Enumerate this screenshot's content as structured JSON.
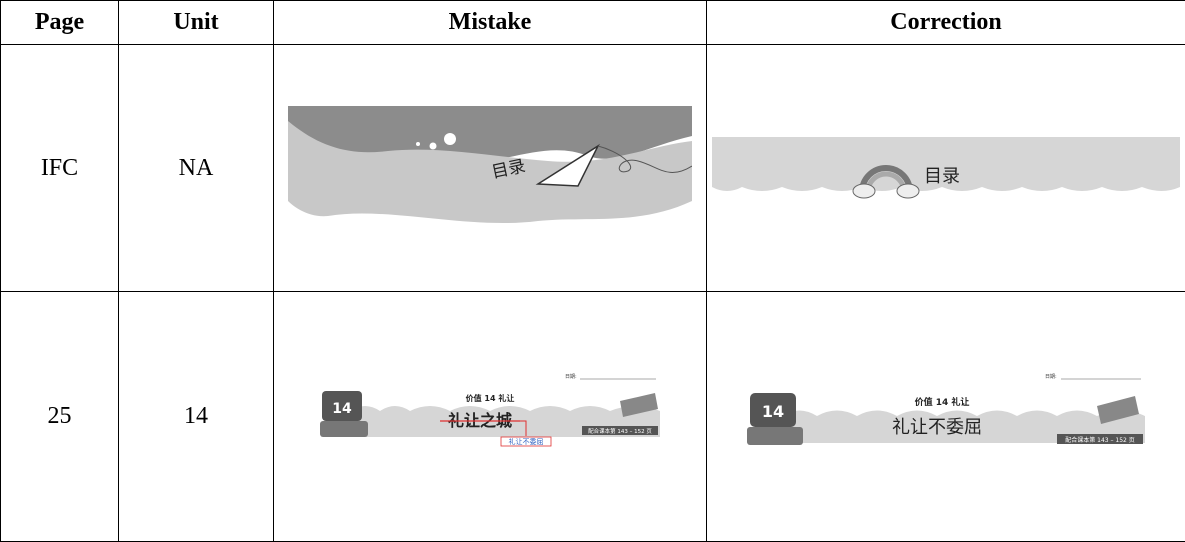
{
  "table": {
    "header": [
      "Page",
      "Unit",
      "Mistake",
      "Correction"
    ],
    "rows": [
      {
        "page": "IFC",
        "unit": "NA",
        "mistake": {
          "heading": "目录"
        },
        "correction": {
          "heading": "目录"
        }
      },
      {
        "page": "25",
        "unit": "14",
        "mistake": {
          "date": "日期:",
          "badge": "14",
          "lesson": "价值 14 礼让",
          "title": "礼让之城",
          "fix": "礼让不委屈",
          "pages": "配合课本第 143 – 152 页"
        },
        "correction": {
          "date": "日期:",
          "badge": "14",
          "lesson": "价值 14 礼让",
          "title": "礼让不委屈",
          "pages": "配合课本第 143 – 152 页"
        }
      }
    ]
  }
}
